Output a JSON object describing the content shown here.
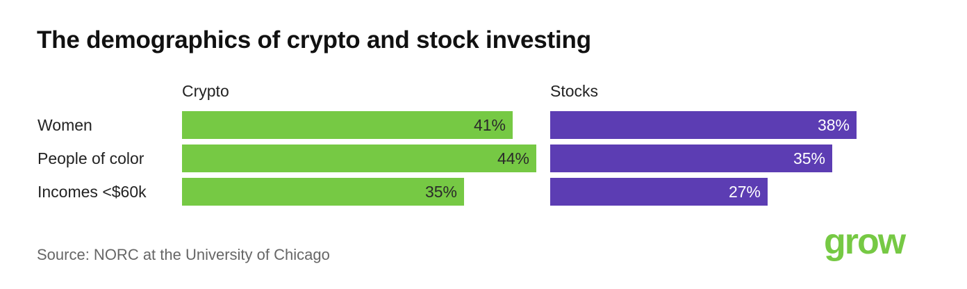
{
  "title": "The demographics of crypto and stock investing",
  "source": "Source: NORC at the University of Chicago",
  "logo_text": "grow",
  "colors": {
    "crypto": "#76c944",
    "stocks": "#5c3db3",
    "crypto_text": "#2a2a2a",
    "stocks_text": "#ffffff",
    "logo": "#76c944"
  },
  "chart_data": {
    "type": "bar",
    "orientation": "horizontal",
    "categories": [
      "Women",
      "People of color",
      "Incomes <$60k"
    ],
    "unit": "%",
    "panels": [
      {
        "name": "Crypto",
        "values": [
          41,
          44,
          35
        ],
        "labels": [
          "41%",
          "44%",
          "35%"
        ]
      },
      {
        "name": "Stocks",
        "values": [
          38,
          35,
          27
        ],
        "labels": [
          "38%",
          "35%",
          "27%"
        ]
      }
    ],
    "legend": "none",
    "grid": false
  }
}
